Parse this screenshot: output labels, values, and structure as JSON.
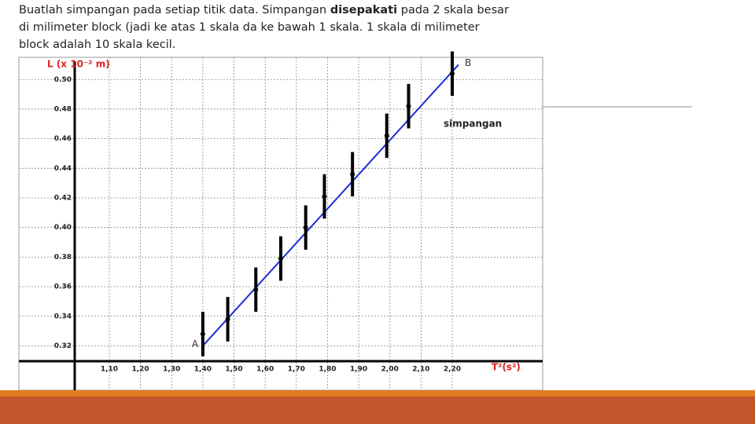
{
  "instruction": {
    "line1_start": "Buatlah simpangan pada setiap titik data. Simpangan ",
    "line1_bold": "disepakati",
    "line1_end": " pada 2 skala besar",
    "line2": "di milimeter block (jadi ke atas 1 skala da ke bawah 1 skala. 1 skala di milimeter",
    "line3": "block adalah 10 skala kecil."
  },
  "chart_data": {
    "type": "errorbar",
    "y_label": "L (x 10⁻² m)",
    "x_label": "T²(s²)",
    "xlim": [
      0.81,
      2.49
    ],
    "ylim": [
      0.29,
      0.515
    ],
    "xticks": [
      {
        "value": 1.1,
        "label": "1,10"
      },
      {
        "value": 1.2,
        "label": "1,20"
      },
      {
        "value": 1.3,
        "label": "1,30"
      },
      {
        "value": 1.4,
        "label": "1,40"
      },
      {
        "value": 1.5,
        "label": "1,50"
      },
      {
        "value": 1.6,
        "label": "1,60"
      },
      {
        "value": 1.7,
        "label": "1,70"
      },
      {
        "value": 1.8,
        "label": "1,80"
      },
      {
        "value": 1.9,
        "label": "1,90"
      },
      {
        "value": 2.0,
        "label": "2,00"
      },
      {
        "value": 2.1,
        "label": "2,10"
      },
      {
        "value": 2.2,
        "label": "2,20"
      }
    ],
    "yticks": [
      0.32,
      0.34,
      0.36,
      0.38,
      {
        "value": 0.4,
        "label": "0.40"
      },
      0.42,
      0.44,
      0.46,
      0.48,
      {
        "value": 0.5,
        "label": "0.50"
      }
    ],
    "grid": true,
    "series": [
      {
        "color": "#000000",
        "x": [
          1.4,
          1.48,
          1.57,
          1.65,
          1.73,
          1.79,
          1.88,
          1.99,
          2.06,
          2.2
        ],
        "values": [
          0.328,
          0.338,
          0.358,
          0.379,
          0.4,
          0.421,
          0.436,
          0.462,
          0.482,
          0.504
        ],
        "errors": [
          0.015,
          0.015,
          0.015,
          0.015,
          0.015,
          0.015,
          0.015,
          0.015,
          0.015,
          0.015
        ]
      }
    ],
    "fit_line": {
      "color": "#1a2ed6",
      "x": [
        1.4,
        2.22
      ],
      "values": [
        0.32,
        0.51
      ]
    },
    "annotations": {
      "start": "A",
      "end": "B",
      "error_note": "simpangan"
    }
  }
}
